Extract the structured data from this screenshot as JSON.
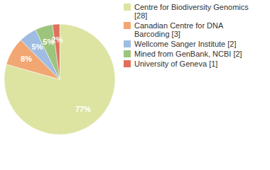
{
  "chart_data": {
    "type": "pie",
    "categories": [
      "Centre for Biodiversity Genomics [28]",
      "Canadian Centre for DNA Barcoding [3]",
      "Wellcome Sanger Institute [2]",
      "Mined from GenBank, NCBI [2]",
      "University of Geneva [1]"
    ],
    "values": [
      77,
      8,
      5,
      5,
      2
    ],
    "value_labels": [
      "77%",
      "8%",
      "5%",
      "5%",
      "2%"
    ],
    "colors": [
      "#dde4a2",
      "#f2a672",
      "#9fbde2",
      "#9dc47c",
      "#e0705e"
    ],
    "data_labels": true,
    "legend": "right"
  }
}
